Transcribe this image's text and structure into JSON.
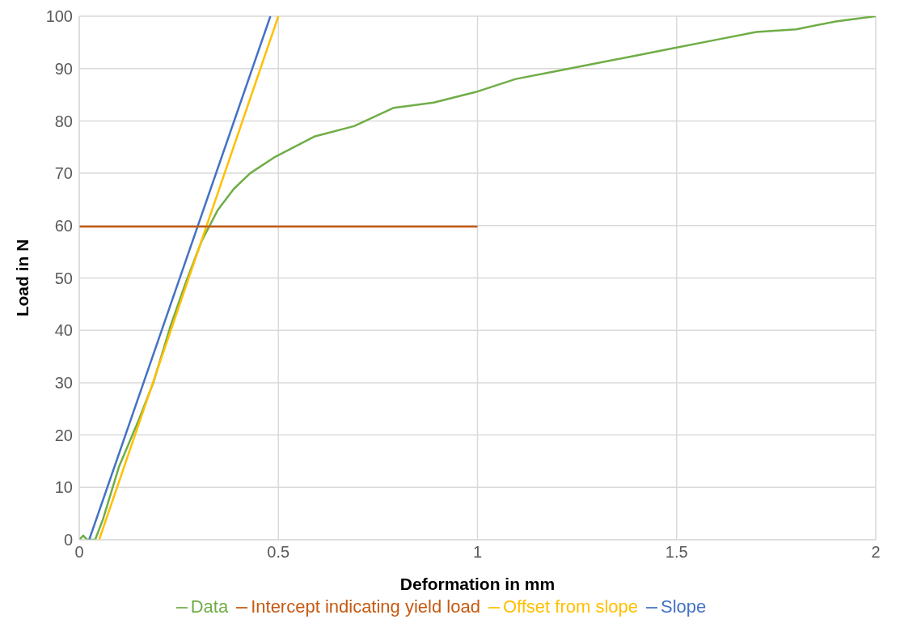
{
  "chart_data": {
    "type": "line",
    "xlabel": "Deformation in mm",
    "ylabel": "Load in N",
    "xlim": [
      0,
      2
    ],
    "xticks": [
      0,
      0.5,
      1,
      1.5,
      2
    ],
    "ylim": [
      0,
      100
    ],
    "yticks": [
      0,
      10,
      20,
      30,
      40,
      50,
      60,
      70,
      80,
      90,
      100
    ],
    "grid": true,
    "legend": "bottom",
    "marker": "none",
    "line_style": "solid",
    "series": [
      {
        "name": "Data",
        "color": "#70ad47",
        "x": [
          0,
          0.01,
          0.02,
          0.04,
          0.06,
          0.1,
          0.15,
          0.186,
          0.23,
          0.267,
          0.307,
          0.348,
          0.388,
          0.429,
          0.489,
          0.59,
          0.69,
          0.79,
          0.89,
          0.995,
          1.096,
          1.197,
          1.298,
          1.4,
          1.5,
          1.6,
          1.7,
          1.8,
          1.9,
          2.0
        ],
        "values": [
          0,
          0.8,
          0,
          0,
          4,
          14,
          23,
          30,
          41,
          49,
          57,
          63,
          67,
          70,
          73,
          77,
          79,
          82.5,
          83.5,
          85.5,
          88,
          89.5,
          91,
          92.5,
          94,
          95.5,
          97,
          97.5,
          99,
          100
        ]
      },
      {
        "name": "Slope",
        "color": "#4472c4",
        "x": [
          0.025,
          0.48
        ],
        "values": [
          0,
          100
        ]
      },
      {
        "name": "Offset from slope",
        "color": "#ffc000",
        "x": [
          0.05,
          0.5
        ],
        "values": [
          0,
          100
        ]
      },
      {
        "name": "Intercept indicating yield load",
        "color": "#c55a11",
        "x": [
          0,
          1
        ],
        "values": [
          59.8,
          59.8
        ]
      }
    ]
  }
}
